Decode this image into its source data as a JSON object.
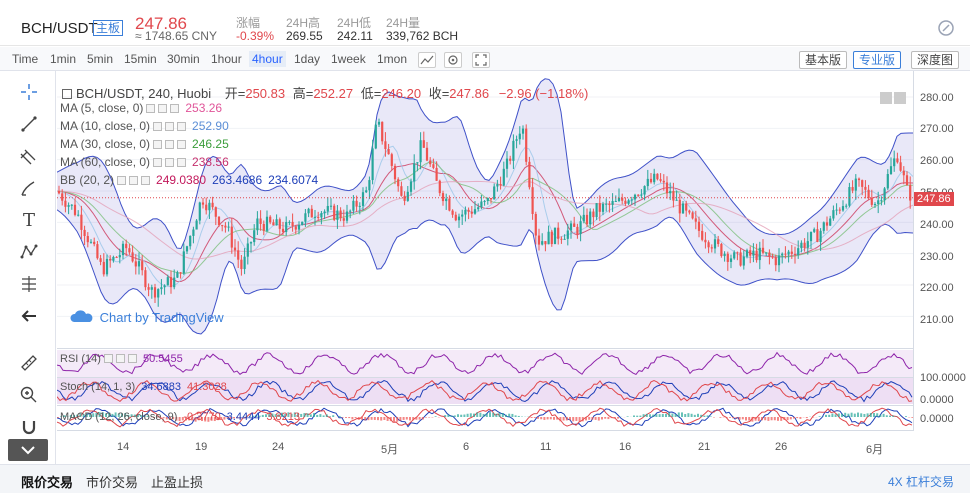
{
  "header": {
    "pair": "BCH/USDT",
    "main_badge": "主板",
    "price": "247.86",
    "cny": "≈ 1748.65 CNY",
    "stats": [
      {
        "label": "涨幅",
        "value": "-0.39%"
      },
      {
        "label": "24H高",
        "value": "269.55"
      },
      {
        "label": "24H低",
        "value": "242.11"
      },
      {
        "label": "24H量",
        "value": "339,762 BCH"
      }
    ]
  },
  "toolbar": {
    "intervals": [
      "Time",
      "1min",
      "5min",
      "15min",
      "30min",
      "1hour",
      "4hour",
      "1day",
      "1week",
      "1mon"
    ],
    "active_interval": "4hour",
    "versions": [
      "基本版",
      "专业版",
      "深度图"
    ],
    "active_version": "专业版"
  },
  "chart": {
    "title": "BCH/USDT, 240, Huobi",
    "ohlc": {
      "open_label": "开=",
      "open": "250.83",
      "high_label": "高=",
      "high": "252.27",
      "low_label": "低=",
      "low": "246.20",
      "close_label": "收=",
      "close": "247.86",
      "change": "−2.96 (−1.18%)"
    },
    "indicators": [
      {
        "name": "MA (5, close, 0)",
        "values": [
          "253.26"
        ],
        "color": "#e05599"
      },
      {
        "name": "MA (10, close, 0)",
        "values": [
          "252.90"
        ],
        "color": "#5b8ed6"
      },
      {
        "name": "MA (30, close, 0)",
        "values": [
          "246.25"
        ],
        "color": "#3a9d3a"
      },
      {
        "name": "MA (60, close, 0)",
        "values": [
          "238.56"
        ],
        "color": "#c5306e"
      },
      {
        "name": "BB (20, 2)",
        "values": [
          "249.0380",
          "263.4686",
          "234.6074"
        ],
        "colors": [
          "#c2185b",
          "#1e3fb8",
          "#1e3fb8"
        ]
      }
    ],
    "y_ticks": [
      "280.00",
      "270.00",
      "260.00",
      "250.00",
      "240.00",
      "230.00",
      "220.00",
      "210.00"
    ],
    "last_price_tag": "247.86",
    "x_ticks": [
      "14",
      "19",
      "24",
      "5月",
      "6",
      "11",
      "16",
      "21",
      "26",
      "6月"
    ],
    "watermark": "Chart by TradingView",
    "rsi": {
      "name": "RSI (14)",
      "value": "50.5455",
      "ticks": [
        "100.0000"
      ]
    },
    "stoch": {
      "name": "Stoch (14, 1, 3)",
      "values": [
        "34.6883",
        "41.3028"
      ],
      "ticks": [
        "100.0000",
        "0.0000"
      ]
    },
    "macd": {
      "name": "MACD (12, 26, close, 9)",
      "values": [
        "-0.3770",
        "3.4444",
        "3.8213"
      ],
      "ticks": [
        "0.0000"
      ]
    }
  },
  "bottom": {
    "tabs": [
      "限价交易",
      "市价交易",
      "止盈止损"
    ],
    "active_tab": "限价交易",
    "leverage": "4X 杠杆交易"
  },
  "colors": {
    "up": "#26a69a",
    "down": "#ef5350",
    "accent": "#3b7fd9",
    "price_red": "#e0474c"
  }
}
